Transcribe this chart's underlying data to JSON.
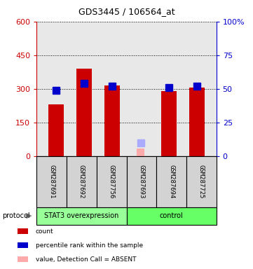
{
  "title": "GDS3445 / 106564_at",
  "samples": [
    "GSM287691",
    "GSM287692",
    "GSM287756",
    "GSM287693",
    "GSM287694",
    "GSM287725"
  ],
  "counts": [
    230,
    390,
    315,
    null,
    290,
    305
  ],
  "percentile_ranks_pct": [
    49,
    54,
    52,
    null,
    51,
    52
  ],
  "absent_value": 35,
  "absent_rank_pct": 10,
  "absent_sample_idx": 3,
  "protocol_groups": [
    {
      "label": "STAT3 overexpression",
      "start": 0,
      "end": 3,
      "color": "#99ff99"
    },
    {
      "label": "control",
      "start": 3,
      "end": 6,
      "color": "#66ff66"
    }
  ],
  "ylim_left": [
    0,
    600
  ],
  "ylim_right": [
    0,
    100
  ],
  "yticks_left": [
    0,
    150,
    300,
    450,
    600
  ],
  "ytick_labels_left": [
    "0",
    "150",
    "300",
    "450",
    "600"
  ],
  "yticks_right": [
    0,
    25,
    50,
    75,
    100
  ],
  "ytick_labels_right": [
    "0",
    "25",
    "50",
    "75",
    "100%"
  ],
  "bar_color_count": "#cc0000",
  "bar_color_rank": "#0000cc",
  "bar_color_absent_val": "#ffaaaa",
  "bar_color_absent_rank": "#aaaaff",
  "bar_width": 0.55,
  "marker_size": 7,
  "plot_bg_color": "#e8e8e8",
  "left_axis_color": "#cc0000",
  "right_axis_color": "#0000cc",
  "sample_box_color": "#d3d3d3"
}
